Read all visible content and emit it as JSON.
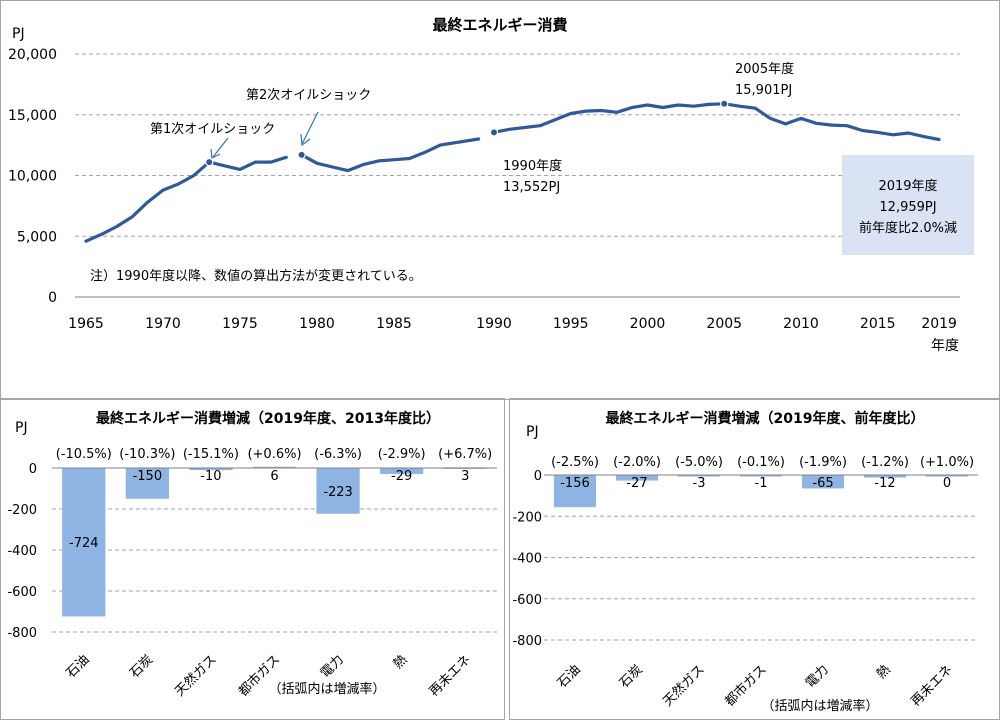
{
  "chart_data": [
    {
      "type": "line",
      "title": "最終エネルギー消費",
      "ylabel": "PJ",
      "xlabel": "年度",
      "ylim": [
        0,
        20000
      ],
      "yticks": [
        "0",
        "5,000",
        "10,000",
        "15,000",
        "20,000"
      ],
      "xticks": [
        "1965",
        "1970",
        "1975",
        "1980",
        "1985",
        "1990",
        "1995",
        "2000",
        "2005",
        "2010",
        "2015",
        "2019"
      ],
      "grid": true,
      "series": [
        {
          "values": [
            [
              1965,
              4600
            ],
            [
              1966,
              5150
            ],
            [
              1967,
              5800
            ],
            [
              1968,
              6600
            ],
            [
              1969,
              7800
            ],
            [
              1970,
              8800
            ],
            [
              1971,
              9300
            ],
            [
              1972,
              10000
            ],
            [
              1973,
              11100
            ]
          ]
        },
        {
          "values": [
            [
              1973,
              11100
            ],
            [
              1974,
              10800
            ],
            [
              1975,
              10500
            ],
            [
              1976,
              11100
            ],
            [
              1977,
              11100
            ],
            [
              1978,
              11500
            ]
          ]
        },
        {
          "values": [
            [
              1979,
              11700
            ],
            [
              1980,
              11000
            ],
            [
              1981,
              10700
            ],
            [
              1982,
              10400
            ],
            [
              1983,
              10900
            ],
            [
              1984,
              11200
            ],
            [
              1985,
              11300
            ],
            [
              1986,
              11400
            ],
            [
              1987,
              11900
            ],
            [
              1988,
              12500
            ],
            [
              1989,
              13000
            ]
          ]
        },
        {
          "values": [
            [
              1990,
              13552
            ],
            [
              1991,
              13800
            ],
            [
              1992,
              13950
            ],
            [
              1993,
              14100
            ],
            [
              1994,
              14600
            ],
            [
              1995,
              15100
            ],
            [
              1996,
              15300
            ],
            [
              1997,
              15350
            ],
            [
              1998,
              15200
            ],
            [
              1999,
              15600
            ],
            [
              2000,
              15800
            ],
            [
              2001,
              15600
            ],
            [
              2002,
              15800
            ],
            [
              2003,
              15700
            ],
            [
              2004,
              15850
            ],
            [
              2005,
              15901
            ],
            [
              2006,
              15700
            ],
            [
              2007,
              15550
            ],
            [
              2008,
              14700
            ],
            [
              2009,
              14250
            ],
            [
              2010,
              14700
            ],
            [
              2011,
              14300
            ],
            [
              2012,
              14150
            ],
            [
              2013,
              14100
            ],
            [
              2014,
              13700
            ],
            [
              2015,
              13550
            ],
            [
              2016,
              13350
            ],
            [
              2017,
              13500
            ],
            [
              2018,
              13200
            ],
            [
              2019,
              12959
            ]
          ]
        }
      ],
      "markers": [
        [
          1973,
          11100
        ],
        [
          1979,
          11700
        ],
        [
          1990,
          13552
        ],
        [
          2005,
          15901
        ]
      ],
      "annotations": {
        "oil1": "第1次オイルショック",
        "oil2": "第2次オイルショック",
        "y1990_label": "1990年度",
        "y1990_value": "13,552PJ",
        "y2005_label": "2005年度",
        "y2005_value": "15,901PJ",
        "note": "注）1990年度以降、数値の算出方法が変更されている。",
        "box_line1": "2019年度",
        "box_line2": "12,959PJ",
        "box_line3": "前年度比2.0%減",
        "box_color": "#dae3f3"
      },
      "line_color": "#2e5a99"
    },
    {
      "type": "bar",
      "title": "最終エネルギー消費増減（2019年度、2013年度比）",
      "ylabel": "PJ",
      "ylim": [
        -800,
        0
      ],
      "yticks": [
        "0",
        "-200",
        "-400",
        "-600",
        "-800"
      ],
      "categories": [
        "石油",
        "石炭",
        "天然ガス",
        "都市ガス",
        "電力",
        "熱",
        "再未エネ"
      ],
      "values": [
        -724,
        -150,
        -10,
        6,
        -223,
        -29,
        3
      ],
      "value_labels": [
        "-724",
        "-150",
        "-10",
        "6",
        "-223",
        "-29",
        "3"
      ],
      "rate_labels": [
        "(-10.5%)",
        "(-10.3%)",
        "(-15.1%)",
        "(+0.6%)",
        "(-6.3%)",
        "(-2.9%)",
        "(+6.7%)"
      ],
      "footnote": "（括弧内は増減率）",
      "bar_color": "#8eb4e3"
    },
    {
      "type": "bar",
      "title": "最終エネルギー消費増減（2019年度、前年度比）",
      "ylabel": "PJ",
      "ylim": [
        -800,
        0
      ],
      "yticks": [
        "0",
        "-200",
        "-400",
        "-600",
        "-800"
      ],
      "categories": [
        "石油",
        "石炭",
        "天然ガス",
        "都市ガス",
        "電力",
        "熱",
        "再未エネ"
      ],
      "values": [
        -156,
        -27,
        -3,
        -1,
        -65,
        -12,
        0
      ],
      "value_labels": [
        "-156",
        "-27",
        "-3",
        "-1",
        "-65",
        "-12",
        "0"
      ],
      "rate_labels": [
        "(-2.5%)",
        "(-2.0%)",
        "(-5.0%)",
        "(-0.1%)",
        "(-1.9%)",
        "(-1.2%)",
        "(+1.0%)"
      ],
      "footnote": "（括弧内は増減率）",
      "bar_color": "#8eb4e3"
    }
  ]
}
